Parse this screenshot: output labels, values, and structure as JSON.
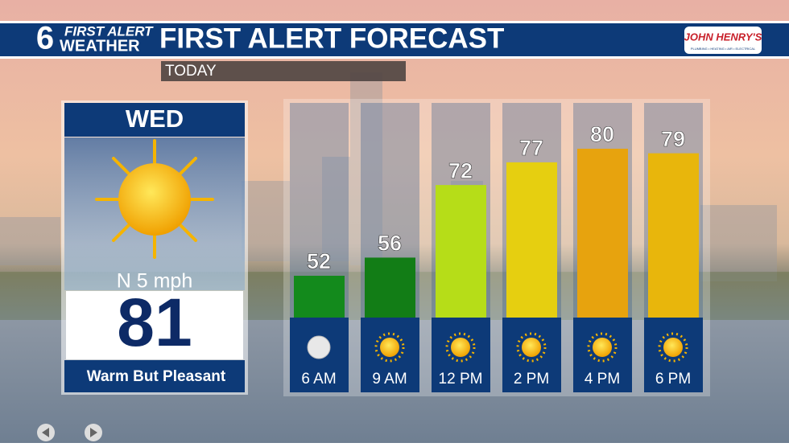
{
  "header": {
    "brand_number": "6",
    "brand_line1": "FIRST ALERT",
    "brand_line2": "WEATHER",
    "title": "FIRST ALERT FORECAST",
    "sponsor": "JOHN HENRY'S",
    "sponsor_tagline": "PLUMBING • HEATING • AIR • ELECTRICAL"
  },
  "period": "TODAY",
  "day_panel": {
    "day": "WED",
    "wind": "N 5 mph",
    "high": 81,
    "description": "Warm But Pleasant"
  },
  "chart_data": {
    "type": "bar",
    "categories": [
      "6 AM",
      "9 AM",
      "12 PM",
      "2 PM",
      "4 PM",
      "6 PM"
    ],
    "values": [
      52,
      56,
      72,
      77,
      80,
      79
    ],
    "colors": [
      "#138a1c",
      "#127d16",
      "#b6dd18",
      "#e6cf10",
      "#e7a30e",
      "#e8b60c"
    ],
    "icons": [
      "moon",
      "sun",
      "sun",
      "sun",
      "sun",
      "sun"
    ]
  }
}
